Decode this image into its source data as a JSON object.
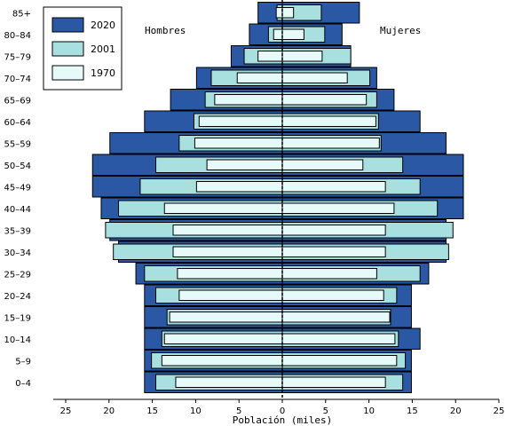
{
  "chart_data": {
    "type": "bar",
    "subtype": "population-pyramid",
    "xlabel": "Población (miles)",
    "left_label": "Hombres",
    "right_label": "Mujeres",
    "xlim": [
      -25,
      25
    ],
    "x_ticks": [
      25,
      20,
      15,
      10,
      5,
      0,
      5,
      10,
      15,
      20,
      25
    ],
    "categories": [
      "85+",
      "80–84",
      "75–79",
      "70–74",
      "65–69",
      "60–64",
      "55–59",
      "50–54",
      "45–49",
      "40–44",
      "35–39",
      "30–34",
      "25–29",
      "20–24",
      "15–19",
      "10–14",
      "5–9",
      "0–4"
    ],
    "legend_placement": "top-left",
    "series": [
      {
        "name": "2020",
        "color": "#2a58a4",
        "men": [
          2.8,
          3.8,
          5.9,
          9.9,
          12.9,
          15.9,
          19.9,
          21.9,
          21.9,
          20.9,
          19.9,
          18.9,
          16.9,
          15.9,
          15.9,
          15.9,
          15.9,
          15.9
        ],
        "women": [
          8.9,
          6.9,
          7.9,
          10.9,
          12.9,
          15.9,
          18.9,
          20.9,
          20.9,
          20.9,
          18.9,
          18.9,
          16.9,
          14.9,
          14.9,
          15.9,
          14.9,
          14.9
        ]
      },
      {
        "name": "2001",
        "color": "#a8e0e0",
        "men": [
          0.6,
          1.6,
          4.4,
          8.2,
          8.9,
          10.2,
          11.9,
          14.6,
          16.4,
          18.9,
          20.4,
          19.5,
          15.9,
          14.6,
          13.3,
          13.9,
          15.1,
          14.6
        ],
        "women": [
          4.5,
          4.9,
          7.9,
          10.1,
          10.9,
          11.1,
          11.4,
          13.9,
          15.9,
          17.9,
          19.7,
          19.2,
          15.9,
          13.2,
          12.5,
          13.4,
          14.2,
          13.9
        ]
      },
      {
        "name": "1970",
        "color": "#e6fafa",
        "men": [
          0.7,
          1.0,
          2.8,
          5.2,
          7.8,
          9.6,
          10.1,
          8.7,
          9.9,
          13.6,
          12.6,
          12.6,
          12.1,
          11.9,
          13.0,
          13.6,
          13.9,
          12.3
        ],
        "women": [
          1.3,
          2.5,
          4.6,
          7.5,
          9.7,
          10.8,
          11.2,
          9.3,
          11.9,
          12.9,
          11.9,
          11.9,
          10.9,
          11.7,
          12.4,
          13.0,
          13.2,
          11.9
        ]
      }
    ]
  }
}
